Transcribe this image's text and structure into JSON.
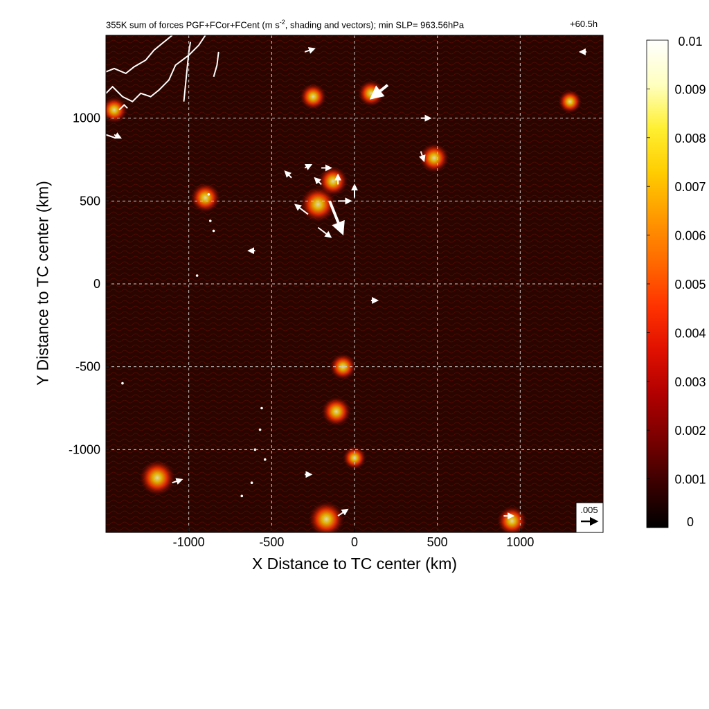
{
  "chart_data": {
    "type": "heatmap",
    "title": "355K sum of forces PGF+FCor+FCent (m s^-2, shading and vectors); min SLP= 963.56hPa",
    "title_parts": {
      "prefix": "355K sum of forces PGF+FCor+FCent (m s",
      "superscript": "-2",
      "suffix": ", shading and vectors); min SLP= 963.56hPa"
    },
    "time_label": "+60.5h",
    "xlabel": "X Distance to TC center (km)",
    "ylabel": "Y Distance to TC center (km)",
    "xlim": [
      -1500,
      1500
    ],
    "ylim": [
      -1500,
      1500
    ],
    "xticks": [
      -1000,
      -500,
      0,
      500,
      1000
    ],
    "yticks": [
      -1000,
      -500,
      0,
      500,
      1000
    ],
    "grid": true,
    "colorbar": {
      "min": 0,
      "max": 0.01,
      "ticks": [
        "0",
        "0.001",
        "0.002",
        "0.003",
        "0.004",
        "0.005",
        "0.006",
        "0.007",
        "0.008",
        "0.009",
        "0.01"
      ],
      "colormap": [
        "#000000",
        "#3a0000",
        "#7a0000",
        "#b00000",
        "#e01000",
        "#ff3300",
        "#ff6a00",
        "#ff9900",
        "#ffcc00",
        "#ffef30",
        "#ffffc0",
        "#ffffff"
      ]
    },
    "reference_vector": {
      "label": ".005",
      "magnitude": 0.005
    },
    "hotspots": [
      {
        "x": -220,
        "y": 480,
        "value": 0.008
      },
      {
        "x": -130,
        "y": 620,
        "value": 0.006
      },
      {
        "x": 100,
        "y": 1150,
        "value": 0.005
      },
      {
        "x": -250,
        "y": 1130,
        "value": 0.005
      },
      {
        "x": 480,
        "y": 760,
        "value": 0.006
      },
      {
        "x": -900,
        "y": 520,
        "value": 0.006
      },
      {
        "x": -1190,
        "y": -1170,
        "value": 0.008
      },
      {
        "x": -170,
        "y": -1420,
        "value": 0.008
      },
      {
        "x": -110,
        "y": -770,
        "value": 0.006
      },
      {
        "x": -70,
        "y": -500,
        "value": 0.005
      },
      {
        "x": 950,
        "y": -1430,
        "value": 0.006
      },
      {
        "x": 0,
        "y": -1050,
        "value": 0.004
      },
      {
        "x": 1300,
        "y": 1100,
        "value": 0.004
      },
      {
        "x": -1450,
        "y": 1050,
        "value": 0.005
      }
    ],
    "vectors": [
      {
        "x": -150,
        "y": 500,
        "u": 0.004,
        "v": -0.01
      },
      {
        "x": -280,
        "y": 420,
        "u": -0.004,
        "v": 0.003
      },
      {
        "x": -220,
        "y": 340,
        "u": 0.004,
        "v": -0.003
      },
      {
        "x": -100,
        "y": 500,
        "u": 0.004,
        "v": 0.0
      },
      {
        "x": 0,
        "y": 520,
        "u": 0.0,
        "v": 0.004
      },
      {
        "x": -100,
        "y": 600,
        "u": 0.0,
        "v": 0.003
      },
      {
        "x": -200,
        "y": 600,
        "u": -0.002,
        "v": 0.002
      },
      {
        "x": -380,
        "y": 640,
        "u": -0.002,
        "v": 0.002
      },
      {
        "x": -300,
        "y": 700,
        "u": 0.002,
        "v": 0.001
      },
      {
        "x": -200,
        "y": 700,
        "u": 0.003,
        "v": 0.0
      },
      {
        "x": 200,
        "y": 1200,
        "u": -0.005,
        "v": -0.004
      },
      {
        "x": 400,
        "y": 800,
        "u": 0.001,
        "v": -0.003
      },
      {
        "x": 400,
        "y": 1000,
        "u": 0.003,
        "v": 0.0
      },
      {
        "x": -300,
        "y": 1400,
        "u": 0.003,
        "v": 0.001
      },
      {
        "x": 1400,
        "y": 1400,
        "u": -0.002,
        "v": 0.0
      },
      {
        "x": -1450,
        "y": 900,
        "u": 0.002,
        "v": -0.001
      },
      {
        "x": -1100,
        "y": -1200,
        "u": 0.003,
        "v": 0.001
      },
      {
        "x": -100,
        "y": -1400,
        "u": 0.003,
        "v": 0.002
      },
      {
        "x": 900,
        "y": -1400,
        "u": 0.003,
        "v": 0.0
      },
      {
        "x": -300,
        "y": -1150,
        "u": 0.002,
        "v": 0.0
      },
      {
        "x": 100,
        "y": -100,
        "u": 0.002,
        "v": 0.0
      },
      {
        "x": -600,
        "y": 200,
        "u": -0.002,
        "v": 0.0
      }
    ],
    "coastlines": [
      [
        [
          -1500,
          1280
        ],
        [
          -1450,
          1300
        ],
        [
          -1380,
          1270
        ],
        [
          -1330,
          1310
        ],
        [
          -1260,
          1350
        ],
        [
          -1210,
          1410
        ],
        [
          -1150,
          1460
        ],
        [
          -1100,
          1500
        ]
      ],
      [
        [
          -1500,
          1150
        ],
        [
          -1460,
          1190
        ],
        [
          -1400,
          1130
        ],
        [
          -1340,
          1100
        ],
        [
          -1290,
          1150
        ],
        [
          -1230,
          1130
        ],
        [
          -1180,
          1170
        ],
        [
          -1120,
          1230
        ],
        [
          -1080,
          1320
        ],
        [
          -1000,
          1380
        ],
        [
          -940,
          1440
        ],
        [
          -900,
          1500
        ]
      ],
      [
        [
          -1420,
          1050
        ],
        [
          -1390,
          1080
        ],
        [
          -1370,
          1060
        ]
      ],
      [
        [
          -1030,
          1100
        ],
        [
          -1020,
          1200
        ],
        [
          -1010,
          1300
        ],
        [
          -1000,
          1400
        ],
        [
          -990,
          1460
        ]
      ],
      [
        [
          -850,
          1250
        ],
        [
          -830,
          1320
        ],
        [
          -820,
          1400
        ]
      ],
      [
        [
          -1500,
          900
        ],
        [
          -1470,
          890
        ],
        [
          -1440,
          880
        ]
      ]
    ],
    "islands": [
      {
        "x": -880,
        "y": 540
      },
      {
        "x": -870,
        "y": 380
      },
      {
        "x": -850,
        "y": 320
      },
      {
        "x": -950,
        "y": 50
      },
      {
        "x": -560,
        "y": -750
      },
      {
        "x": -570,
        "y": -880
      },
      {
        "x": -600,
        "y": -1000
      },
      {
        "x": -540,
        "y": -1060
      },
      {
        "x": -620,
        "y": -1200
      },
      {
        "x": -680,
        "y": -1280
      },
      {
        "x": -1400,
        "y": -600
      }
    ]
  }
}
